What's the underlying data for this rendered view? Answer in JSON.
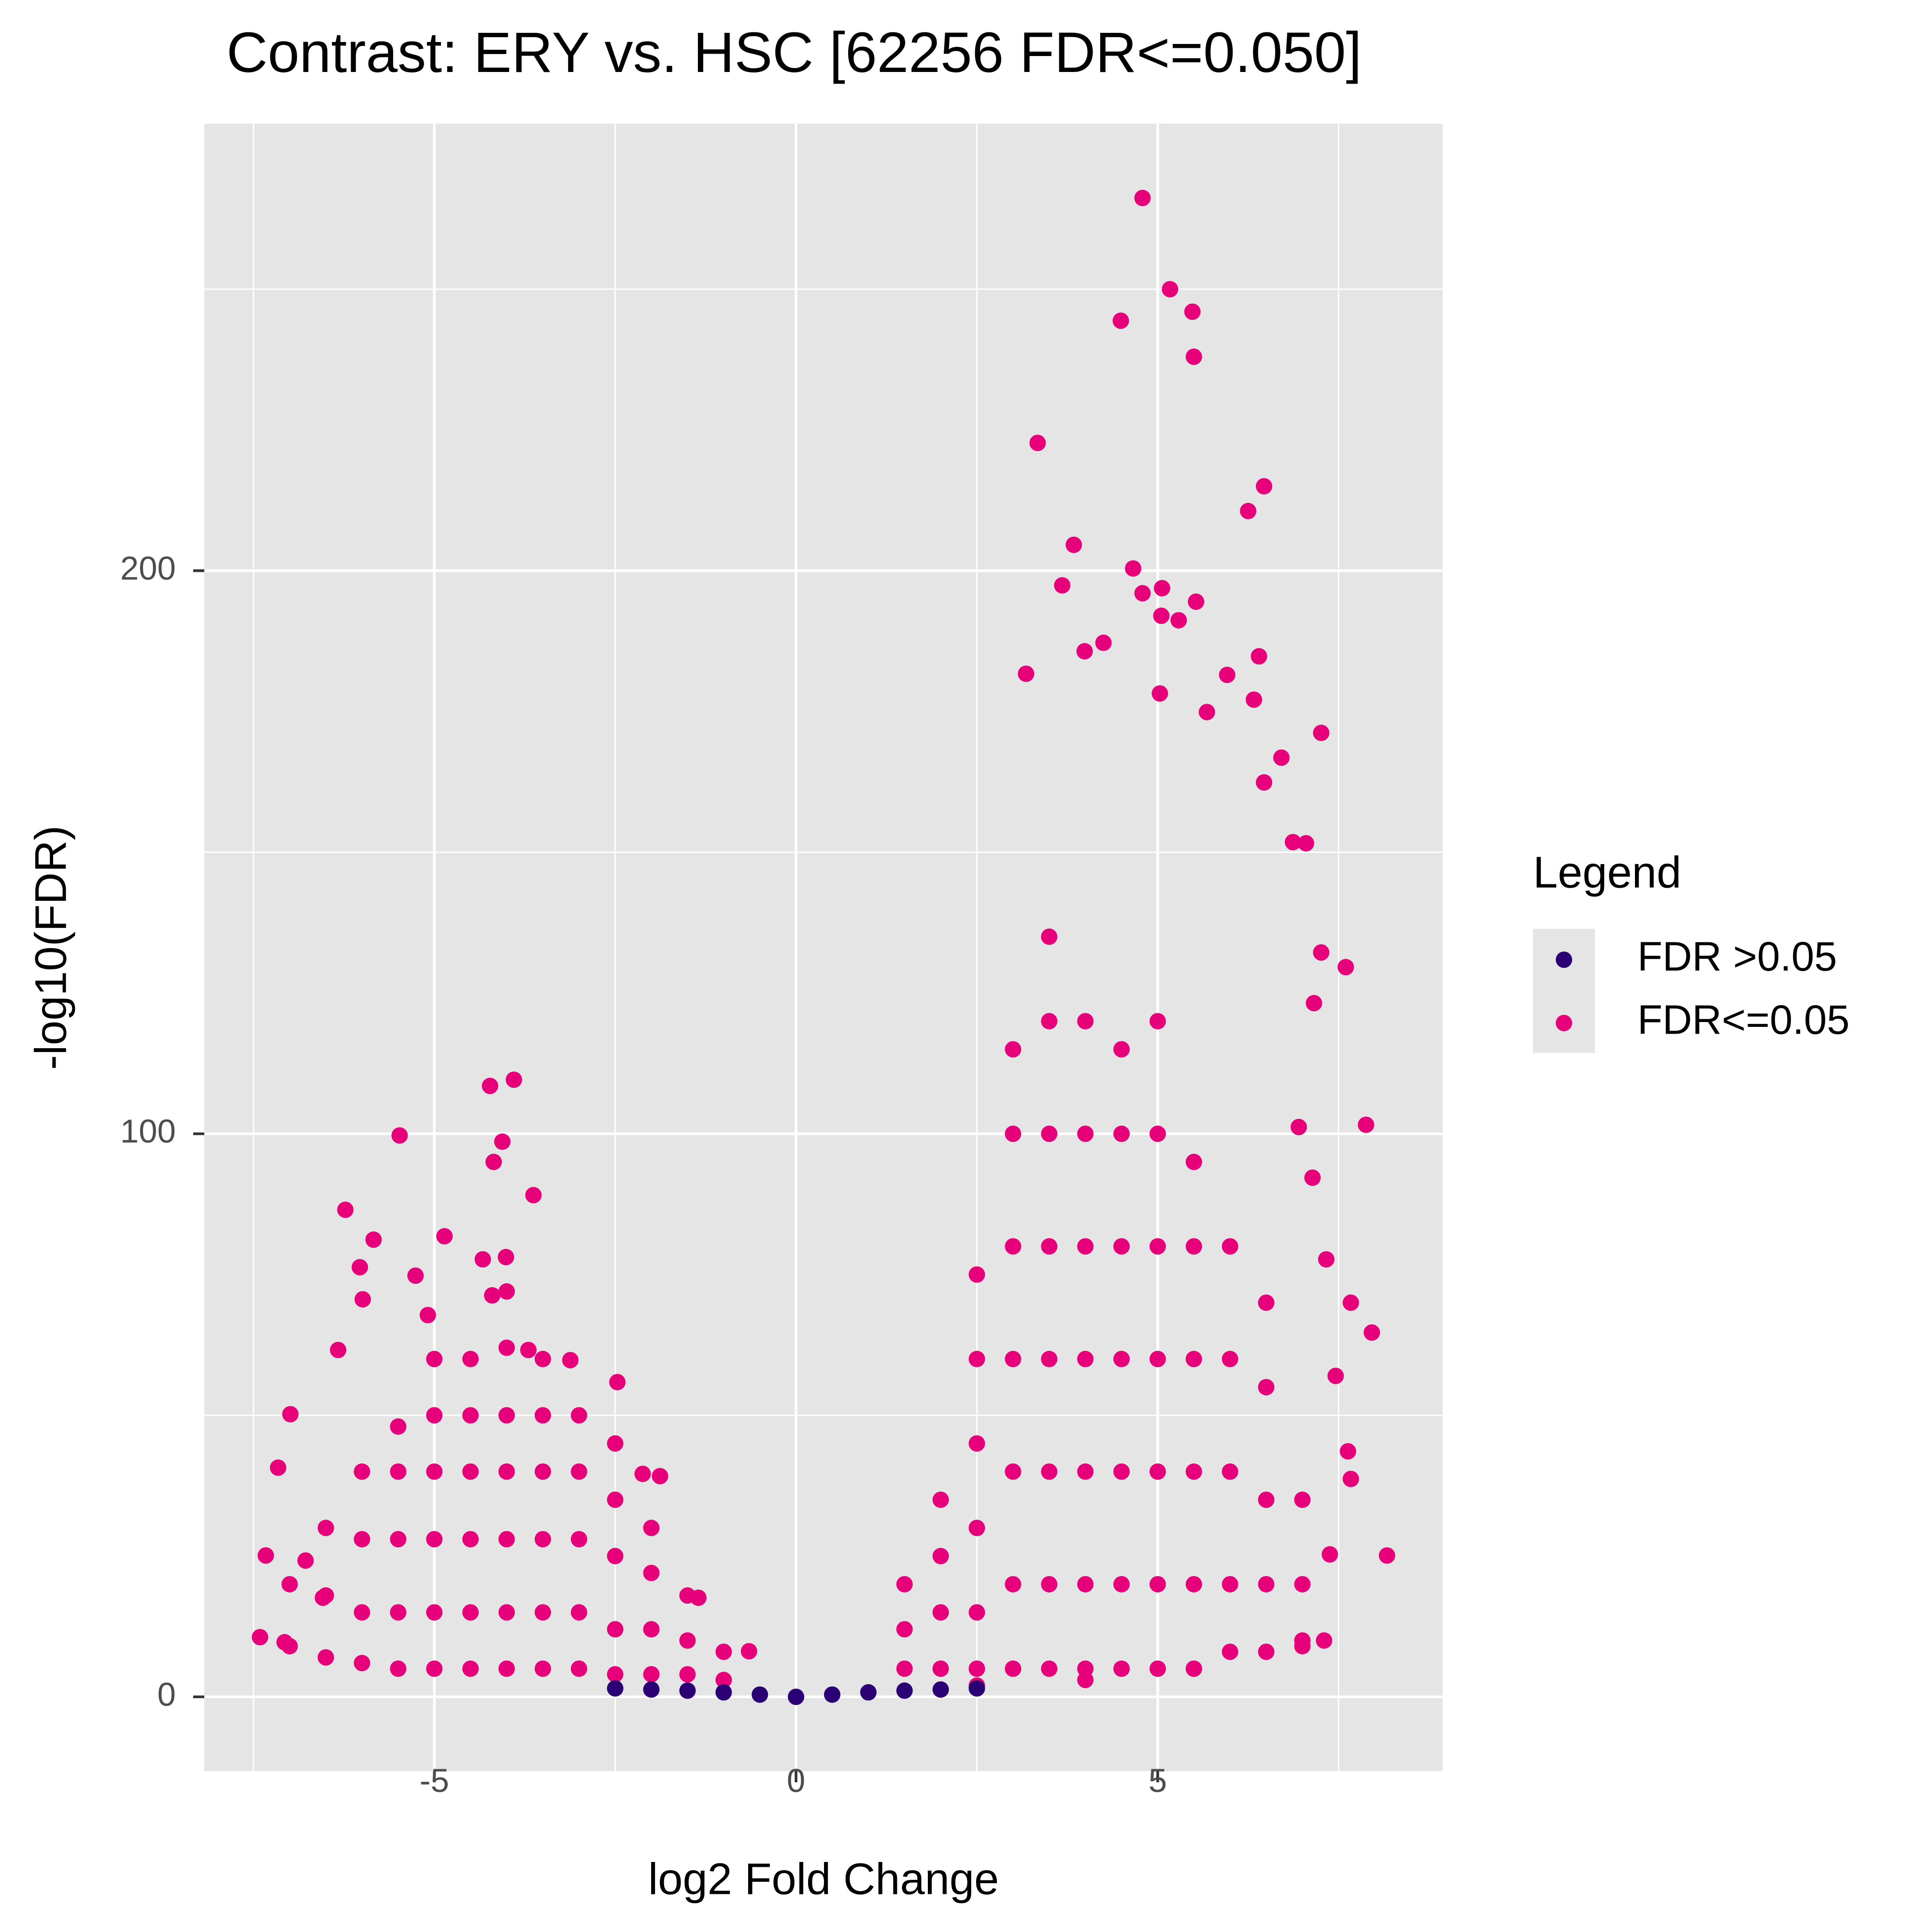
{
  "chart_data": {
    "type": "scatter",
    "title": "Contrast: ERY vs. HSC  [62256 FDR<=0.050]",
    "x_label": "log2 Fold Change",
    "y_label": "-log10(FDR)",
    "xlim": [
      -8.18,
      8.94
    ],
    "ylim": [
      -13.2,
      279.4
    ],
    "xticks": [
      -5,
      0,
      5
    ],
    "yticks": [
      0,
      100,
      200
    ],
    "minor_xticks": [
      -7.5,
      -2.5,
      2.5,
      7.5
    ],
    "minor_yticks": [
      50,
      150,
      250
    ],
    "grid": true,
    "legend": "right",
    "legend_title": "Legend",
    "series": [
      {
        "name": "FDR >0.05",
        "color": "#2a0074",
        "x": [
          -2.5,
          -2,
          -1.5,
          -1,
          -0.5,
          0,
          0.5,
          1,
          1.5,
          2,
          2.5
        ],
        "y": [
          1.5,
          1.3,
          1.1,
          0.8,
          0.4,
          0,
          0.4,
          0.8,
          1.1,
          1.3,
          1.5
        ]
      },
      {
        "name": "FDR<=0.05",
        "color": "#e6007a",
        "x": [
          4.79,
          5.17,
          5.48,
          4.49,
          5.5,
          3.34,
          6.47,
          6.25,
          3.84,
          4.66,
          3.68,
          5.06,
          4.79,
          5.53,
          5.05,
          5.29,
          4.25,
          3.99,
          6.4,
          3.18,
          5.96,
          5.03,
          6.33,
          5.68,
          7.26,
          6.71,
          6.47,
          6.87,
          7.05,
          7.26,
          7.6,
          7.16,
          7.88,
          6.95,
          7.14,
          7.96,
          8.17,
          7.67,
          7.67,
          7.63,
          7.38,
          7.46,
          7.33,
          -3.9,
          -4.23,
          -4.06,
          -5.48,
          -4.18,
          -3.63,
          -6.23,
          -5.84,
          -4.86,
          -4.01,
          -6.03,
          -5.26,
          -4.33,
          -4.2,
          -5.99,
          -6.33,
          -5.09,
          -2.47,
          -6.99,
          -7.16,
          -7.33,
          -1.88,
          -2.12,
          -7.41,
          -7.07,
          -6.78,
          -6.54,
          -1.35,
          -0.65,
          -3.12,
          -3.7,
          1.5,
          1.5,
          1.5,
          2,
          2,
          2,
          2,
          2.5,
          2.5,
          2.5,
          2.5,
          2.5,
          2.5,
          3,
          3,
          3,
          3,
          3,
          3,
          3,
          3.5,
          3.5,
          3.5,
          3.5,
          3.5,
          3.5,
          3.5,
          3.5,
          4,
          4,
          4,
          4,
          4,
          4,
          4,
          4.5,
          4.5,
          4.5,
          4.5,
          4.5,
          4.5,
          4.5,
          5,
          5,
          5,
          5,
          5,
          5,
          5,
          5.5,
          5.5,
          5.5,
          5.5,
          5.5,
          5.5,
          6,
          6,
          6,
          6,
          6,
          6.5,
          6.5,
          6.5,
          6.5,
          6.5,
          7,
          7,
          7,
          2.5,
          4,
          5.5,
          7,
          7.3,
          -1,
          -1,
          -1.5,
          -1.5,
          -1.5,
          -2,
          -2,
          -2,
          -2,
          -2.5,
          -2.5,
          -2.5,
          -2.5,
          -2.5,
          -3,
          -3,
          -3,
          -3,
          -3,
          -3.5,
          -3.5,
          -3.5,
          -3.5,
          -3.5,
          -3.5,
          -4,
          -4,
          -4,
          -4,
          -4,
          -4,
          -4,
          -4.5,
          -4.5,
          -4.5,
          -4.5,
          -4.5,
          -4.5,
          -5,
          -5,
          -5,
          -5,
          -5,
          -5,
          -5.5,
          -5.5,
          -5.5,
          -5.5,
          -5.5,
          -6,
          -6,
          -6,
          -6,
          -6.5,
          -6.5,
          -6.5,
          -7,
          -7
        ],
        "y": [
          266.2,
          250,
          246,
          244.4,
          238,
          222.7,
          215,
          210.6,
          204.6,
          200.4,
          197.4,
          196.9,
          196,
          194.5,
          192,
          191.2,
          187.2,
          185.7,
          184.8,
          181.7,
          181.5,
          178.2,
          177.1,
          174.9,
          171.2,
          166.8,
          162.4,
          151.8,
          151.6,
          132.2,
          129.6,
          123.2,
          101.6,
          101.2,
          92.2,
          64.7,
          25.1,
          70,
          38.7,
          43.6,
          25.3,
          57,
          77.7,
          109.6,
          108.5,
          98.6,
          99.7,
          95,
          89.1,
          86.5,
          81.2,
          81.8,
          78.1,
          76.3,
          74.8,
          77.7,
          71.3,
          70.6,
          61.6,
          67.8,
          55.9,
          50.2,
          40.7,
          25.1,
          39.2,
          39.6,
          10.6,
          9.7,
          24.2,
          17.6,
          17.6,
          8.1,
          59.8,
          61.6,
          5,
          12,
          20,
          5,
          15,
          25,
          35,
          5,
          15,
          30,
          45,
          60,
          75,
          5,
          20,
          40,
          60,
          80,
          100,
          115,
          5,
          20,
          40,
          60,
          80,
          100,
          120,
          135,
          5,
          20,
          40,
          60,
          80,
          100,
          120,
          5,
          20,
          40,
          60,
          80,
          100,
          115,
          5,
          20,
          40,
          60,
          80,
          100,
          120,
          5,
          20,
          40,
          60,
          80,
          95,
          8,
          20,
          40,
          60,
          80,
          8,
          20,
          35,
          55,
          70,
          10,
          20,
          35,
          2,
          3,
          5,
          9,
          10,
          3,
          8,
          4,
          10,
          18,
          4,
          12,
          22,
          30,
          4,
          12,
          25,
          35,
          45,
          5,
          15,
          28,
          40,
          50,
          5,
          15,
          28,
          40,
          50,
          60,
          5,
          15,
          28,
          40,
          50,
          62,
          72,
          5,
          15,
          28,
          40,
          50,
          60,
          5,
          15,
          28,
          40,
          50,
          60,
          5,
          15,
          28,
          40,
          48,
          6,
          15,
          28,
          40,
          7,
          18,
          30,
          9,
          20
        ]
      }
    ]
  }
}
